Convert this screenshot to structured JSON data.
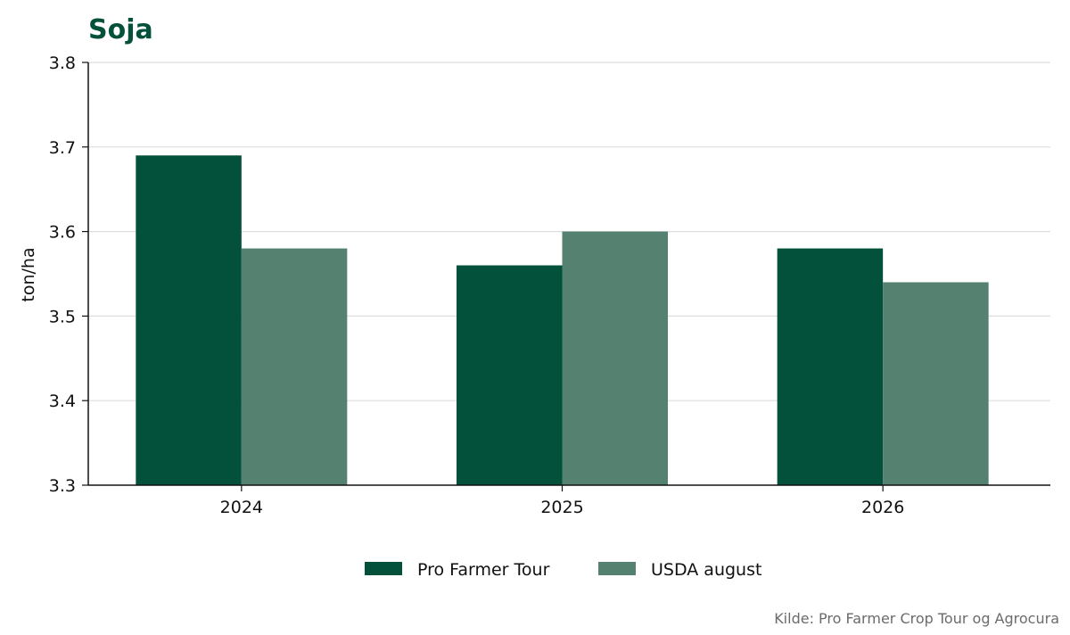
{
  "chart_data": {
    "type": "bar",
    "title": "Soja",
    "xlabel": "",
    "ylabel": "ton/ha",
    "categories": [
      "2024",
      "2025",
      "2026"
    ],
    "series": [
      {
        "name": "Pro Farmer Tour",
        "values": [
          3.69,
          3.56,
          3.58
        ],
        "color": "#03513a"
      },
      {
        "name": "USDA august",
        "values": [
          3.58,
          3.6,
          3.54
        ],
        "color": "#548170"
      }
    ],
    "ylim": [
      3.3,
      3.8
    ],
    "yticks": [
      "3.3",
      "3.4",
      "3.5",
      "3.6",
      "3.7",
      "3.8"
    ],
    "grid": true,
    "legend_position": "bottom-center",
    "source": "Kilde: Pro Farmer Crop Tour og Agrocura"
  }
}
